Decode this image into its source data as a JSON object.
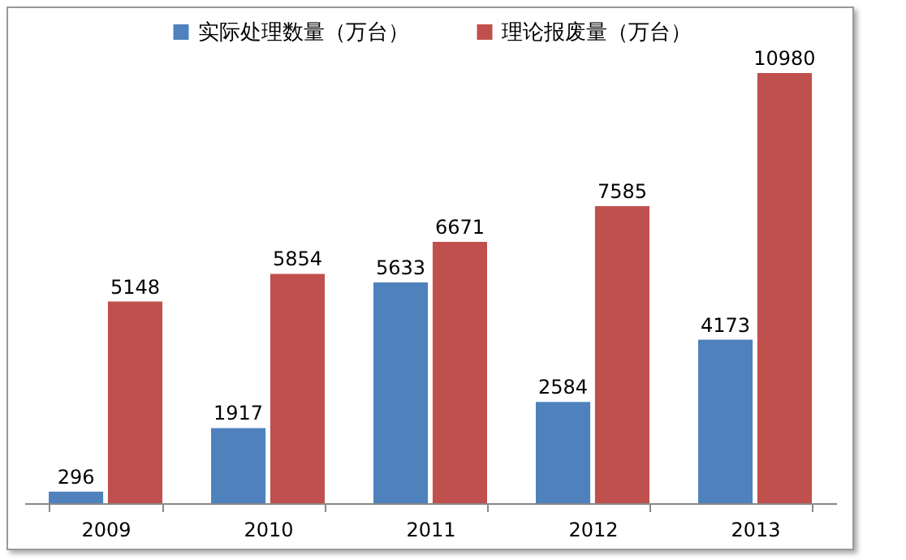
{
  "chart_data": {
    "type": "bar",
    "categories": [
      "2009",
      "2010",
      "2011",
      "2012",
      "2013"
    ],
    "series": [
      {
        "name": "实际处理数量（万台）",
        "color": "#4f81bd",
        "values": [
          296,
          1917,
          5633,
          2584,
          4173
        ]
      },
      {
        "name": "理论报废量（万台）",
        "color": "#c0504d",
        "values": [
          5148,
          5854,
          6671,
          7585,
          10980
        ]
      }
    ],
    "data_labels": true,
    "legend": "top"
  }
}
